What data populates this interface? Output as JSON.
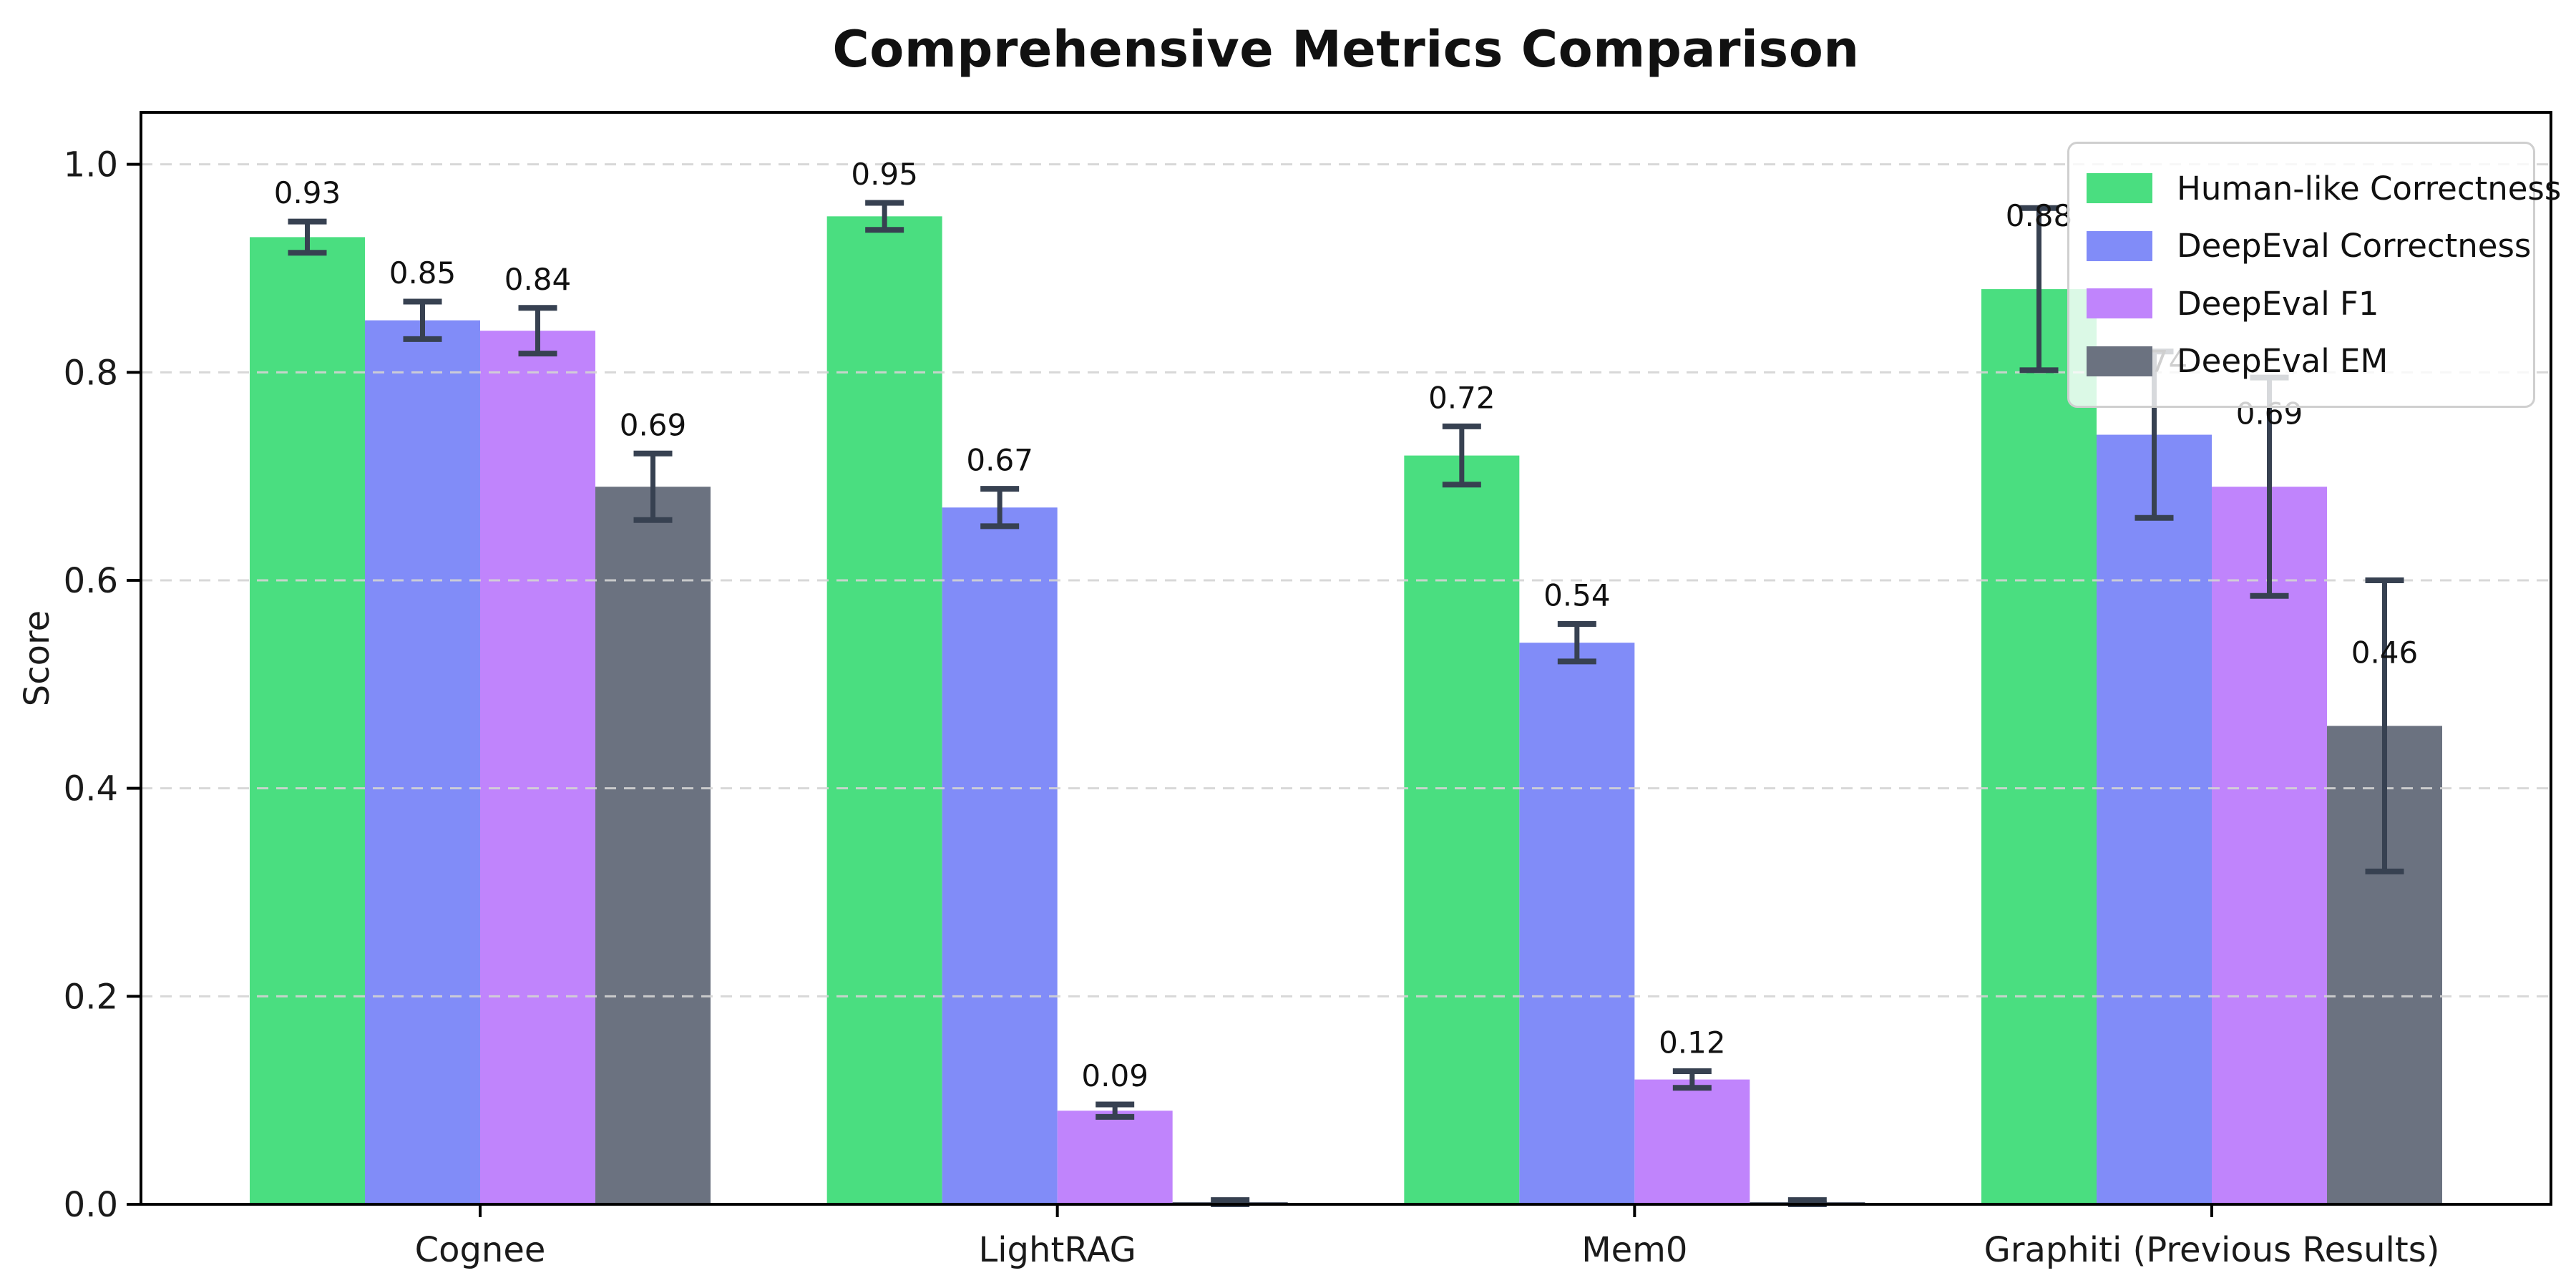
{
  "chart_data": {
    "type": "bar",
    "title": "Comprehensive Metrics Comparison",
    "ylabel": "Score",
    "xlabel": "",
    "categories": [
      "Cognee",
      "LightRAG",
      "Mem0",
      "Graphiti (Previous Results)"
    ],
    "series": [
      {
        "name": "Human-like Correctness",
        "color": "#4ade80",
        "values": [
          0.93,
          0.95,
          0.72,
          0.88
        ],
        "errors": [
          0.015,
          0.013,
          0.028,
          0.078
        ],
        "labels": [
          "0.93",
          "0.95",
          "0.72",
          "0.88"
        ]
      },
      {
        "name": "DeepEval Correctness",
        "color": "#818cf8",
        "values": [
          0.85,
          0.67,
          0.54,
          0.74
        ],
        "errors": [
          0.018,
          0.018,
          0.018,
          0.08
        ],
        "labels": [
          "0.85",
          "0.67",
          "0.54",
          "0.74"
        ]
      },
      {
        "name": "DeepEval F1",
        "color": "#c084fc",
        "values": [
          0.84,
          0.09,
          0.12,
          0.69
        ],
        "errors": [
          0.022,
          0.006,
          0.008,
          0.105
        ],
        "labels": [
          "0.84",
          "0.09",
          "0.12",
          "0.69"
        ]
      },
      {
        "name": "DeepEval EM",
        "color": "#6b7280",
        "values": [
          0.69,
          0.002,
          0.002,
          0.46
        ],
        "errors": [
          0.032,
          0.002,
          0.002,
          0.14
        ],
        "labels": [
          "0.69",
          "",
          "",
          "0.46"
        ]
      }
    ],
    "ylim": [
      0,
      1.05
    ],
    "ytick_labels": [
      "0.0",
      "0.2",
      "0.4",
      "0.6",
      "0.8",
      "1.0"
    ],
    "ytick_values": [
      0.0,
      0.2,
      0.4,
      0.6,
      0.8,
      1.0
    ],
    "grid": "horizontal-dashed",
    "legend_position": "upper right",
    "colors": {
      "errorbar": "#374151",
      "axis": "#000000",
      "grid": "#d4d4d4",
      "tick_text": "#1a1a1a",
      "value_text": "#111111",
      "background": "#ffffff"
    }
  }
}
